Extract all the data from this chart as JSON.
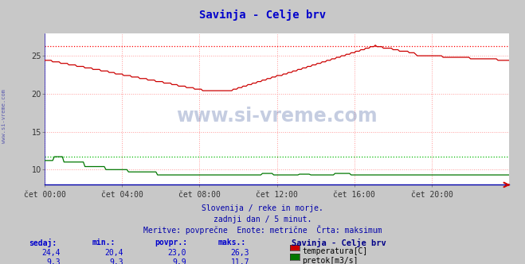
{
  "title": "Savinja - Celje brv",
  "title_color": "#0000cc",
  "bg_color": "#c8c8c8",
  "plot_bg_color": "#ffffff",
  "grid_color": "#ff9999",
  "x_ticks": [
    "čet 00:00",
    "čet 04:00",
    "čet 08:00",
    "čet 12:00",
    "čet 16:00",
    "čet 20:00"
  ],
  "x_tick_positions": [
    0,
    48,
    96,
    144,
    192,
    240
  ],
  "n_points": 289,
  "ylim": [
    8.0,
    28.0
  ],
  "yticks": [
    10,
    15,
    20,
    25
  ],
  "temp_max_line": 26.3,
  "flow_max_line": 11.7,
  "temp_color": "#cc0000",
  "flow_color": "#007700",
  "max_line_color_temp": "#ff0000",
  "max_line_color_flow": "#00bb00",
  "watermark_text": "www.si-vreme.com",
  "watermark_color": "#1a3a8a",
  "watermark_alpha": 0.25,
  "left_label": "www.si-vreme.com",
  "left_label_color": "#4444aa",
  "subtitle1": "Slovenija / reke in morje.",
  "subtitle2": "zadnji dan / 5 minut.",
  "subtitle3": "Meritve: povprečne  Enote: metrične  Črta: maksimum",
  "subtitle_color": "#0000aa",
  "table_headers": [
    "sedaj:",
    "min.:",
    "povpr.:",
    "maks.:"
  ],
  "table_header_color": "#0000cc",
  "station_name": "Savinja - Celje brv",
  "station_name_color": "#000088",
  "row1_values": [
    "24,4",
    "20,4",
    "23,0",
    "26,3"
  ],
  "row2_values": [
    "9,3",
    "9,3",
    "9,9",
    "11,7"
  ],
  "row_color": "#0000cc",
  "legend1": "temperatura[C]",
  "legend2": "pretok[m3/s]",
  "legend_color": "#000000",
  "axis_color": "#0000aa",
  "right_arrow_color": "#cc0000"
}
